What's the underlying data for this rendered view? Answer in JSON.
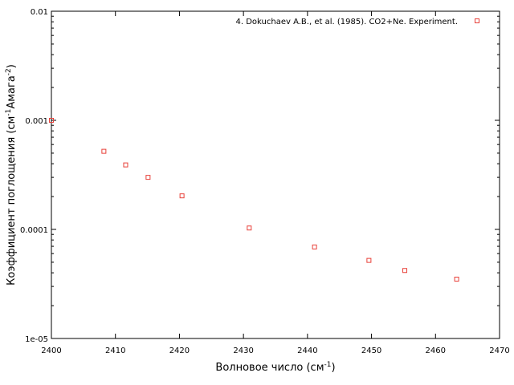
{
  "chart_data": {
    "type": "scatter",
    "title": "",
    "xlabel": "Волновое число (см",
    "xlabel_sup": "-1",
    "xlabel_end": ")",
    "ylabel": "Коэффициент поглощения (см",
    "ylabel_sup1": "-1",
    "ylabel_mid": "Амага",
    "ylabel_sup2": "-2",
    "ylabel_end": ")",
    "xlim": [
      2400,
      2470
    ],
    "ylim": [
      1e-05,
      0.01
    ],
    "yscale": "log",
    "x_ticks": [
      2400,
      2410,
      2420,
      2430,
      2440,
      2450,
      2460,
      2470
    ],
    "x_tick_labels": [
      "2400",
      "2410",
      "2420",
      "2430",
      "2440",
      "2450",
      "2460",
      "2470"
    ],
    "y_ticks": [
      1e-05,
      0.0001,
      0.001,
      0.01
    ],
    "y_tick_labels": [
      "1e-05",
      "0.0001",
      "0.001",
      "0.01"
    ],
    "grid": false,
    "legend_position": "top-right",
    "series": [
      {
        "name": "4. Dokuchaev A.B., et al. (1985). CO2+Ne. Experiment.",
        "color": "#e8413a",
        "marker": "open-square",
        "x": [
          2400.0,
          2408.2,
          2411.6,
          2415.1,
          2420.4,
          2430.9,
          2441.1,
          2449.6,
          2455.2,
          2463.3
        ],
        "y": [
          0.001,
          0.00052,
          0.00039,
          0.0003,
          0.000203,
          0.000103,
          6.9e-05,
          5.2e-05,
          4.2e-05,
          3.5e-05
        ]
      }
    ]
  }
}
